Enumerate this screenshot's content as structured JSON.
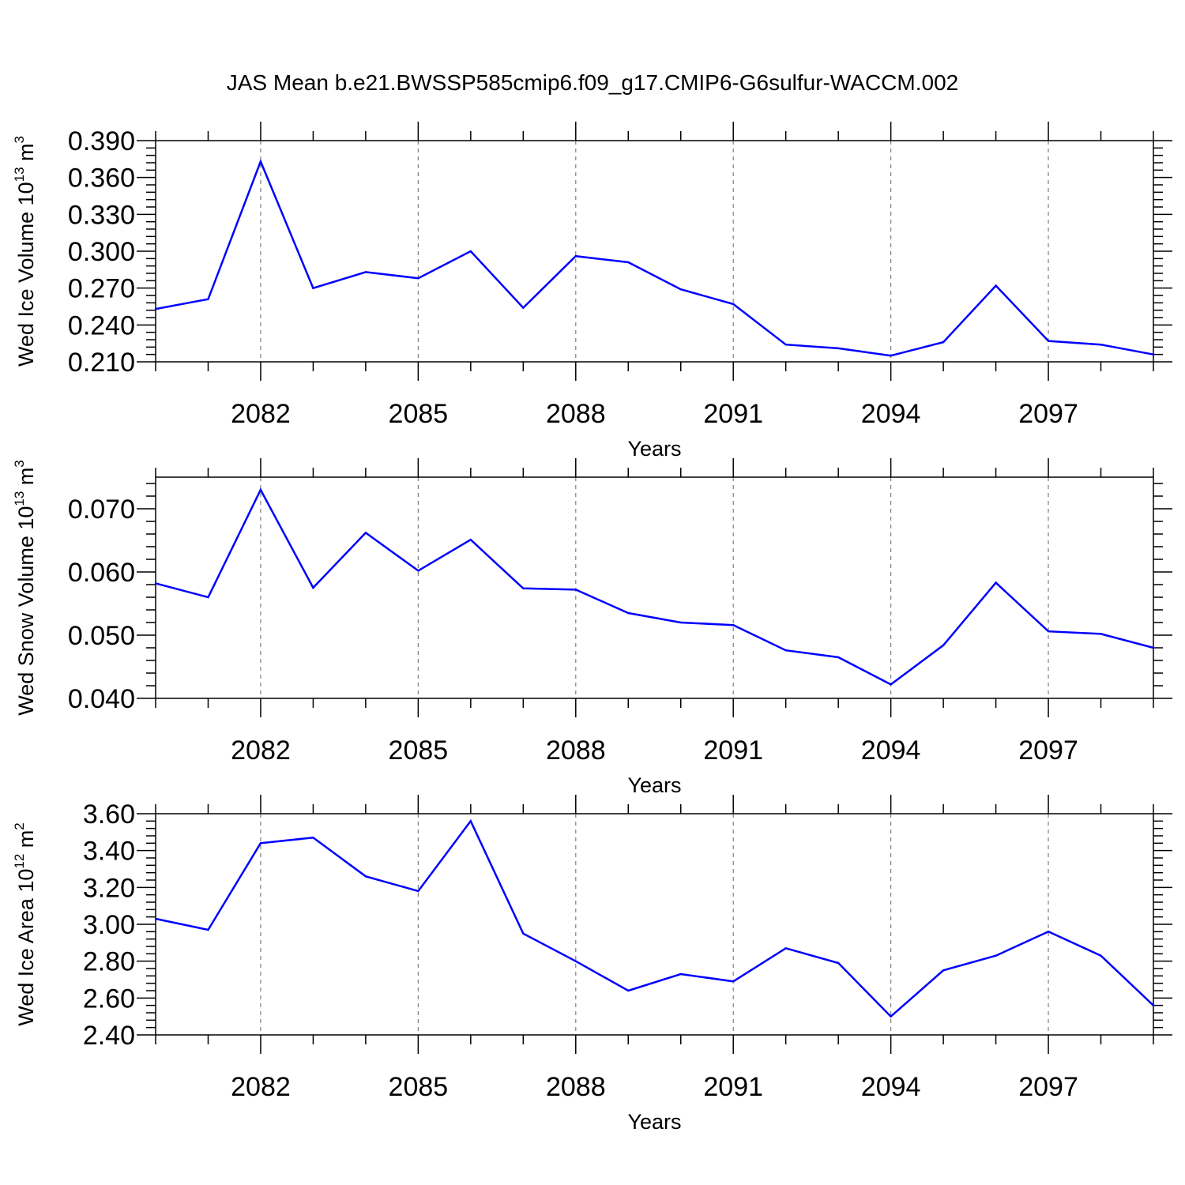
{
  "title": "JAS Mean b.e21.BWSSP585cmip6.f09_g17.CMIP6-G6sulfur-WACCM.002",
  "line_color": "#0000ff",
  "axis_color": "#000000",
  "grid_color": "#7f7f7f",
  "chart_data": [
    {
      "type": "line",
      "ylabel_main": "Wed Ice Volume 10",
      "ylabel_exp": "13",
      "ylabel_unit": " m",
      "ylabel_unit_exp": "3",
      "xlabel": "Years",
      "xlim": [
        2080,
        2099
      ],
      "ylim": [
        0.21,
        0.39
      ],
      "x_ticks": [
        2082,
        2085,
        2088,
        2091,
        2094,
        2097
      ],
      "x_tick_labels": [
        "2082",
        "2085",
        "2088",
        "2091",
        "2094",
        "2097"
      ],
      "y_ticks": [
        0.21,
        0.24,
        0.27,
        0.3,
        0.33,
        0.36,
        0.39
      ],
      "y_tick_labels": [
        "0.210",
        "0.240",
        "0.270",
        "0.300",
        "0.330",
        "0.360",
        "0.390"
      ],
      "y_minor_step": 0.006,
      "x": [
        2080,
        2081,
        2082,
        2083,
        2084,
        2085,
        2086,
        2087,
        2088,
        2089,
        2090,
        2091,
        2092,
        2093,
        2094,
        2095,
        2096,
        2097,
        2098,
        2099
      ],
      "series": [
        {
          "name": "Wed Ice Volume",
          "values": [
            0.253,
            0.261,
            0.373,
            0.27,
            0.283,
            0.278,
            0.3,
            0.254,
            0.296,
            0.291,
            0.269,
            0.257,
            0.224,
            0.221,
            0.215,
            0.226,
            0.272,
            0.227,
            0.224,
            0.216
          ]
        }
      ]
    },
    {
      "type": "line",
      "ylabel_main": "Wed Snow Volume 10",
      "ylabel_exp": "13",
      "ylabel_unit": " m",
      "ylabel_unit_exp": "3",
      "xlabel": "Years",
      "xlim": [
        2080,
        2099
      ],
      "ylim": [
        0.04,
        0.075
      ],
      "x_ticks": [
        2082,
        2085,
        2088,
        2091,
        2094,
        2097
      ],
      "x_tick_labels": [
        "2082",
        "2085",
        "2088",
        "2091",
        "2094",
        "2097"
      ],
      "y_ticks": [
        0.04,
        0.05,
        0.06,
        0.07
      ],
      "y_tick_labels": [
        "0.040",
        "0.050",
        "0.060",
        "0.070"
      ],
      "y_minor_step": 0.002,
      "x": [
        2080,
        2081,
        2082,
        2083,
        2084,
        2085,
        2086,
        2087,
        2088,
        2089,
        2090,
        2091,
        2092,
        2093,
        2094,
        2095,
        2096,
        2097,
        2098,
        2099
      ],
      "series": [
        {
          "name": "Wed Snow Volume",
          "values": [
            0.0582,
            0.056,
            0.073,
            0.0575,
            0.0662,
            0.0602,
            0.0651,
            0.0574,
            0.0572,
            0.0535,
            0.052,
            0.0516,
            0.0476,
            0.0465,
            0.0422,
            0.0484,
            0.0583,
            0.0506,
            0.0502,
            0.048
          ]
        }
      ]
    },
    {
      "type": "line",
      "ylabel_main": "Wed Ice Area 10",
      "ylabel_exp": "12",
      "ylabel_unit": " m",
      "ylabel_unit_exp": "2",
      "xlabel": "Years",
      "xlim": [
        2080,
        2099
      ],
      "ylim": [
        2.4,
        3.6
      ],
      "x_ticks": [
        2082,
        2085,
        2088,
        2091,
        2094,
        2097
      ],
      "x_tick_labels": [
        "2082",
        "2085",
        "2088",
        "2091",
        "2094",
        "2097"
      ],
      "y_ticks": [
        2.4,
        2.6,
        2.8,
        3.0,
        3.2,
        3.4,
        3.6
      ],
      "y_tick_labels": [
        "2.40",
        "2.60",
        "2.80",
        "3.00",
        "3.20",
        "3.40",
        "3.60"
      ],
      "y_minor_step": 0.04,
      "x": [
        2080,
        2081,
        2082,
        2083,
        2084,
        2085,
        2086,
        2087,
        2088,
        2089,
        2090,
        2091,
        2092,
        2093,
        2094,
        2095,
        2096,
        2097,
        2098,
        2099
      ],
      "series": [
        {
          "name": "Wed Ice Area",
          "values": [
            3.03,
            2.97,
            3.44,
            3.47,
            3.26,
            3.18,
            3.56,
            2.95,
            2.8,
            2.64,
            2.73,
            2.69,
            2.87,
            2.79,
            2.5,
            2.75,
            2.83,
            2.96,
            2.83,
            2.56
          ]
        }
      ]
    }
  ]
}
